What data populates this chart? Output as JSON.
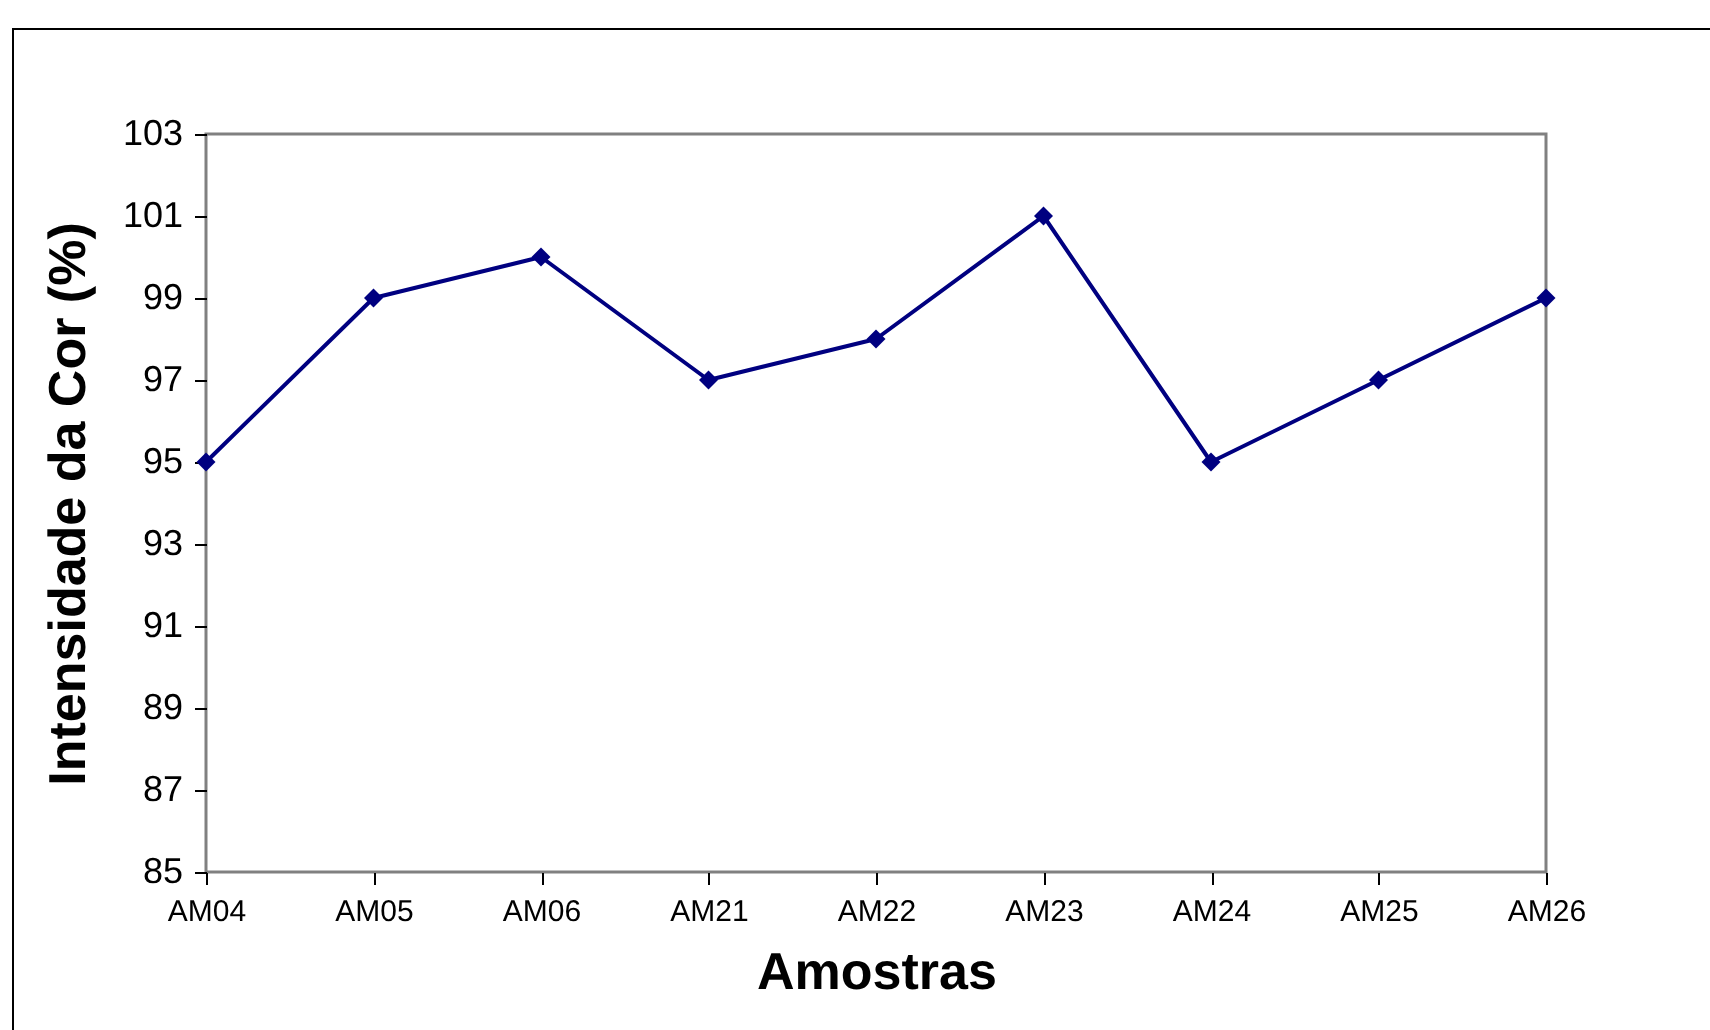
{
  "chart_data": {
    "type": "line",
    "xlabel": "Amostras",
    "ylabel": "Intensidade da Cor (%)",
    "categories": [
      "AM04",
      "AM05",
      "AM06",
      "AM21",
      "AM22",
      "AM23",
      "AM24",
      "AM25",
      "AM26"
    ],
    "series": [
      {
        "color": "#000080",
        "values": [
          95,
          99,
          100,
          97,
          98,
          101,
          95,
          97,
          99
        ]
      }
    ],
    "ylim": [
      85,
      103
    ],
    "yticks": [
      85,
      87,
      89,
      91,
      93,
      95,
      97,
      99,
      101,
      103
    ],
    "grid": false,
    "marker": "diamond",
    "line_style": "solid"
  }
}
